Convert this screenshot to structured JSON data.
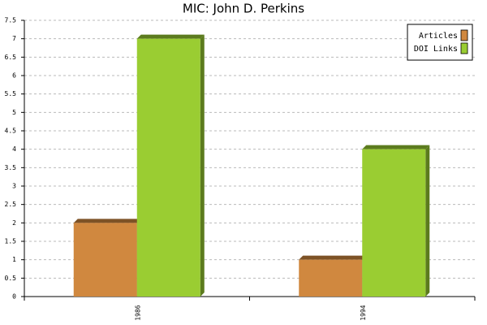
{
  "chart_data": {
    "type": "bar",
    "title": "MIC: John D. Perkins",
    "categories": [
      "1986",
      "1994"
    ],
    "series": [
      {
        "name": "Articles",
        "color": "#d0883f",
        "values": [
          2,
          1
        ]
      },
      {
        "name": "DOI Links",
        "color": "#9acd32",
        "values": [
          7,
          4
        ]
      }
    ],
    "ylim": [
      0,
      7.5
    ],
    "yticks": [
      0,
      0.5,
      1,
      1.5,
      2,
      2.5,
      3,
      3.5,
      4,
      4.5,
      5,
      5.5,
      6,
      6.5,
      7,
      7.5
    ],
    "grid": true,
    "legend": "top-right"
  }
}
